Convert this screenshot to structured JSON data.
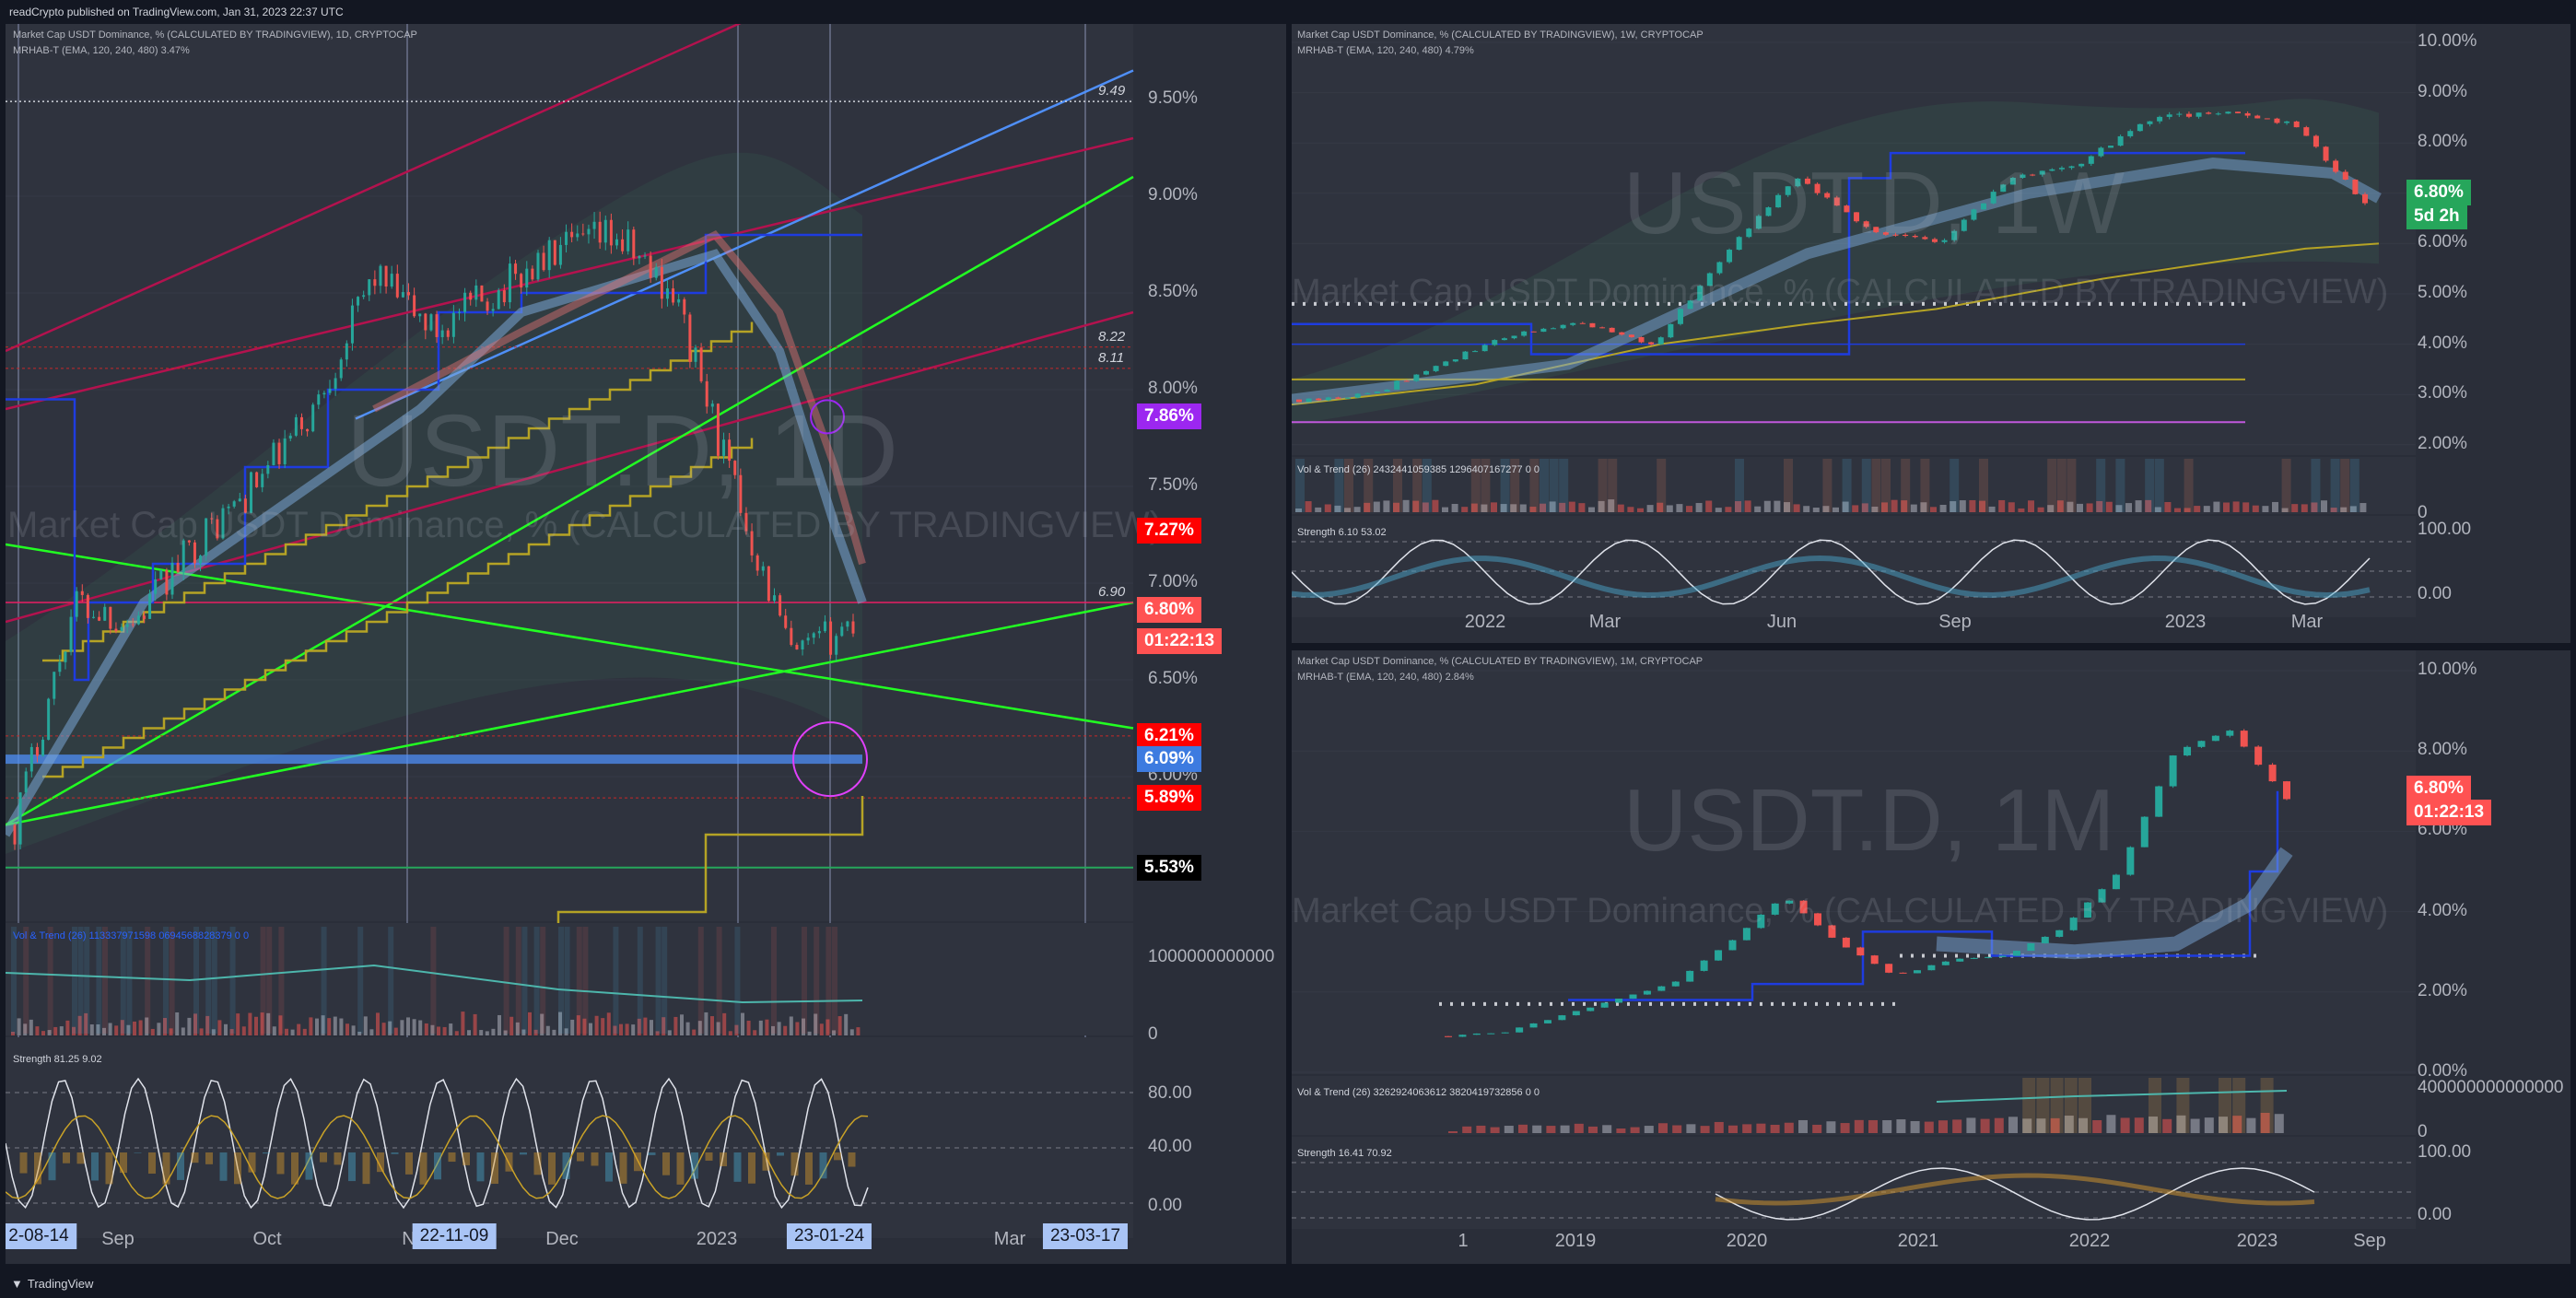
{
  "header": {
    "published": "readCrypto published on TradingView.com, Jan 31, 2023 22:37 UTC"
  },
  "footer": {
    "brand": "TradingView"
  },
  "colors": {
    "bg": "#131722",
    "pane": "#2a2e39",
    "up": "#26a69a",
    "down": "#ef5350",
    "green_line": "#22ff22",
    "crimson_line": "#b3124e",
    "blue_line": "#4f8ff7",
    "olive": "#b5a325",
    "navy_step": "#1e3ce0",
    "magenta": "#e040fb",
    "badge_red": "#ff0000",
    "badge_green": "#26a65b",
    "badge_purple": "#9c27f0",
    "badge_blue": "#3d7be0"
  },
  "panes": {
    "daily": {
      "legend": "Market Cap USDT Dominance, % (CALCULATED BY TRADINGVIEW), 1D, CRYPTOCAP",
      "legend2": "MRHAB-T (EMA, 120, 240, 480)  3.47%",
      "watermark_sym": "USDT.D, 1D",
      "watermark_name": "Market Cap USDT Dominance, % (CALCULATED BY TRADINGVIEW)",
      "price_labels": [
        "9.50%",
        "9.00%",
        "8.50%",
        "8.00%",
        "7.50%",
        "7.00%",
        "6.50%",
        "6.00%"
      ],
      "line_tags": [
        "9.49",
        "8.22",
        "8.11",
        "6.90"
      ],
      "badges": [
        {
          "text": "7.86%",
          "color": "#9c27f0"
        },
        {
          "text": "7.27%",
          "color": "#ff0000"
        },
        {
          "text": "6.80%",
          "color": "#ff5252"
        },
        {
          "text": "01:22:13",
          "color": "#ff5252"
        },
        {
          "text": "6.21%",
          "color": "#ff0000"
        },
        {
          "text": "6.09%",
          "color": "#3d7be0"
        },
        {
          "text": "5.89%",
          "color": "#ff0000"
        },
        {
          "text": "5.53%",
          "color": "#000000"
        }
      ],
      "vol_legend": "Vol & Trend (26)  113337971598  0694568828379  0  0",
      "vol_scale": [
        "1000000000000",
        "0"
      ],
      "strength_legend": "Strength  81.25  9.02",
      "strength_scale": [
        "80.00",
        "40.00",
        "0.00"
      ],
      "x_labels": [
        "Sep",
        "Oct",
        "Nov",
        "Dec",
        "2023",
        "Mar"
      ],
      "x_boxes": [
        "2-08-14",
        "22-11-09",
        "23-01-24",
        "23-03-17"
      ]
    },
    "weekly": {
      "legend": "Market Cap USDT Dominance, % (CALCULATED BY TRADINGVIEW), 1W, CRYPTOCAP",
      "legend2": "MRHAB-T (EMA, 120, 240, 480)  4.79%",
      "watermark_sym": "USDT.D, 1W",
      "watermark_name": "Market Cap USDT Dominance, % (CALCULATED BY TRADINGVIEW)",
      "price_labels": [
        "10.00%",
        "9.00%",
        "8.00%",
        "7.00%",
        "6.00%",
        "5.00%",
        "4.00%",
        "3.00%",
        "2.00%"
      ],
      "badges": [
        {
          "text": "6.80%",
          "color": "#26a65b"
        },
        {
          "text": "5d 2h",
          "color": "#26a65b"
        }
      ],
      "vol_legend": "Vol & Trend (26)  2432441059385  1296407167277  0  0",
      "vol_scale": [
        "0"
      ],
      "strength_legend": "Strength  6.10  53.02",
      "strength_scale": [
        "100.00",
        "0.00"
      ],
      "x_labels": [
        "2022",
        "Mar",
        "Jun",
        "Sep",
        "2023",
        "Mar"
      ]
    },
    "monthly": {
      "legend": "Market Cap USDT Dominance, % (CALCULATED BY TRADINGVIEW), 1M, CRYPTOCAP",
      "legend2": "MRHAB-T (EMA, 120, 240, 480)  2.84%",
      "watermark_sym": "USDT.D, 1M",
      "watermark_name": "Market Cap USDT Dominance, % (CALCULATED BY TRADINGVIEW)",
      "price_labels": [
        "10.00%",
        "8.00%",
        "6.00%",
        "4.00%",
        "2.00%",
        "0.00%"
      ],
      "badges": [
        {
          "text": "6.80%",
          "color": "#ff5252"
        },
        {
          "text": "01:22:13",
          "color": "#ff5252"
        }
      ],
      "vol_legend": "Vol & Trend (26)  3262924063612  3820419732856  0  0",
      "vol_scale": [
        "400000000000000",
        "0"
      ],
      "strength_legend": "Strength  16.41  70.92",
      "strength_scale": [
        "100.00",
        "0.00"
      ],
      "x_labels": [
        "1",
        "2019",
        "2020",
        "2021",
        "2022",
        "2023",
        "Sep"
      ]
    }
  },
  "chart_data": [
    {
      "type": "line",
      "title": "Market Cap USDT Dominance, % (CALCULATED BY TRADINGVIEW), 1D, CRYPTOCAP",
      "x": [
        "2022-08-14",
        "2022-09-01",
        "2022-10-01",
        "2022-11-01",
        "2022-11-09",
        "2022-12-01",
        "2023-01-01",
        "2023-01-24",
        "2023-01-31"
      ],
      "series": [
        {
          "values": [
            5.7,
            7.0,
            7.3,
            7.8,
            8.8,
            8.5,
            8.7,
            6.6,
            6.8
          ]
        }
      ],
      "ylim": [
        5.5,
        9.8
      ],
      "grid": true
    },
    {
      "type": "line",
      "title": "Market Cap USDT Dominance, % (CALCULATED BY TRADINGVIEW), 1W, CRYPTOCAP",
      "x": [
        "2021-10",
        "2022-01",
        "2022-03",
        "2022-06",
        "2022-09",
        "2022-12",
        "2023-01"
      ],
      "series": [
        {
          "values": [
            2.9,
            3.1,
            4.0,
            7.0,
            7.5,
            8.5,
            6.8
          ]
        }
      ],
      "ylim": [
        2.0,
        10.0
      ],
      "grid": true
    },
    {
      "type": "line",
      "title": "Market Cap USDT Dominance, % (CALCULATED BY TRADINGVIEW), 1M, CRYPTOCAP",
      "x": [
        "2018",
        "2019",
        "2020",
        "2021",
        "2022",
        "2023"
      ],
      "series": [
        {
          "values": [
            0.8,
            1.8,
            2.5,
            3.6,
            3.0,
            6.8
          ]
        }
      ],
      "ylim": [
        0.0,
        10.0
      ],
      "grid": true
    }
  ]
}
